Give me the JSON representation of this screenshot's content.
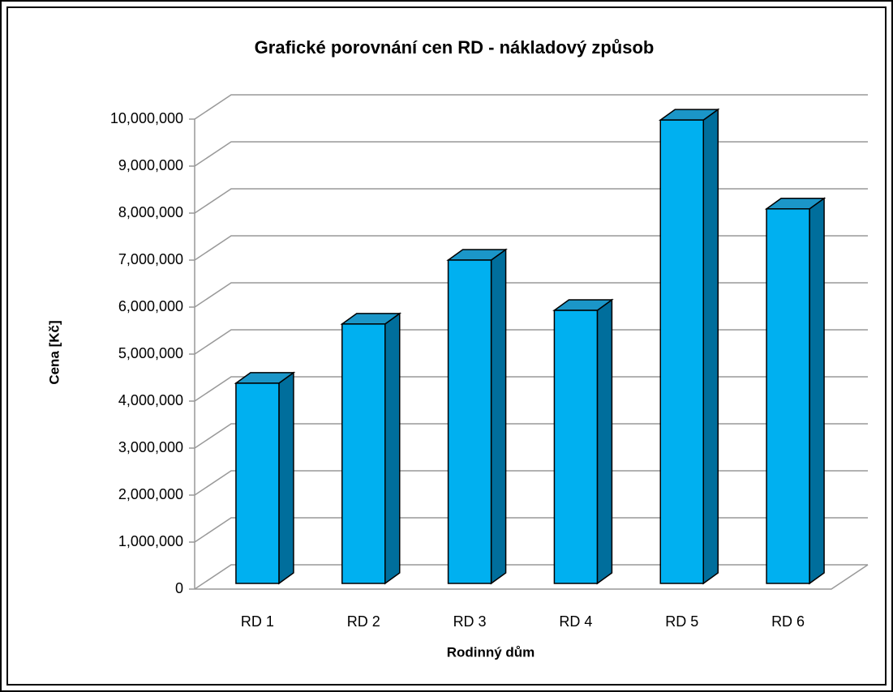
{
  "chart_data": {
    "type": "bar3d",
    "title": "Grafické porovnání cen RD - nákladový způsob",
    "x_label": "Rodinný dům",
    "y_label": "Cena [Kč]",
    "categories": [
      "RD 1",
      "RD 2",
      "RD 3",
      "RD 4",
      "RD 5",
      "RD 6"
    ],
    "values": [
      4260000,
      5520000,
      6880000,
      5810000,
      9860000,
      7970000
    ],
    "color": "#00b0f0",
    "side_color": "#006e9c",
    "top_color": "#1b96c8",
    "ylim": [
      0,
      10000000
    ],
    "yticks": [
      0,
      {
        "value": 1000000,
        "label": "1,000,000"
      },
      {
        "value": 2000000,
        "label": "2,000,000"
      },
      {
        "value": 3000000,
        "label": "3,000,000"
      },
      {
        "value": 4000000,
        "label": "4,000,000"
      },
      {
        "value": 5000000,
        "label": "5,000,000"
      },
      {
        "value": 6000000,
        "label": "6,000,000"
      },
      {
        "value": 7000000,
        "label": "7,000,000"
      },
      {
        "value": 8000000,
        "label": "8,000,000"
      },
      {
        "value": 9000000,
        "label": "9,000,000"
      },
      {
        "value": 10000000,
        "label": "10,000,000"
      }
    ],
    "grid": true
  }
}
